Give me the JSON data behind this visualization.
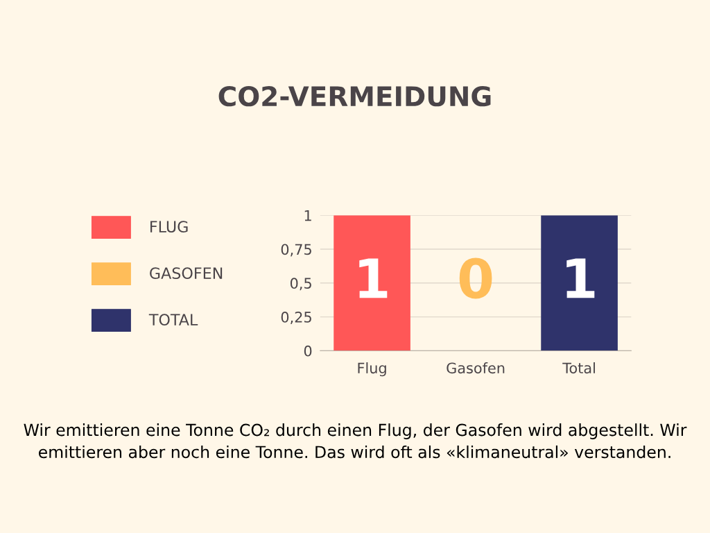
{
  "chart_data": {
    "type": "bar",
    "title": "CO2-VERMEIDUNG",
    "categories": [
      "Flug",
      "Gasofen",
      "Total"
    ],
    "series": [
      {
        "name": "FLUG",
        "color": "#ff5757",
        "values": [
          1,
          null,
          null
        ]
      },
      {
        "name": "GASOFEN",
        "color": "#ffbd59",
        "values": [
          null,
          0,
          null
        ]
      },
      {
        "name": "TOTAL",
        "color": "#2f336b",
        "values": [
          null,
          null,
          1
        ]
      }
    ],
    "ylim": [
      0,
      1
    ],
    "yticks": [
      0,
      {
        "value": 0.25,
        "label": "0,25"
      },
      {
        "value": 0.5,
        "label": "0,5"
      },
      {
        "value": 0.75,
        "label": "0,75"
      },
      1
    ],
    "grid": "y",
    "legend": "left",
    "data_labels": true,
    "annotations": [
      "Wir emittieren eine Tonne CO₂ durch einen Flug, der Gasofen wird abgestellt. Wir emittieren aber noch eine Tonne. Das wird oft als «klimaneutral» verstanden."
    ]
  }
}
